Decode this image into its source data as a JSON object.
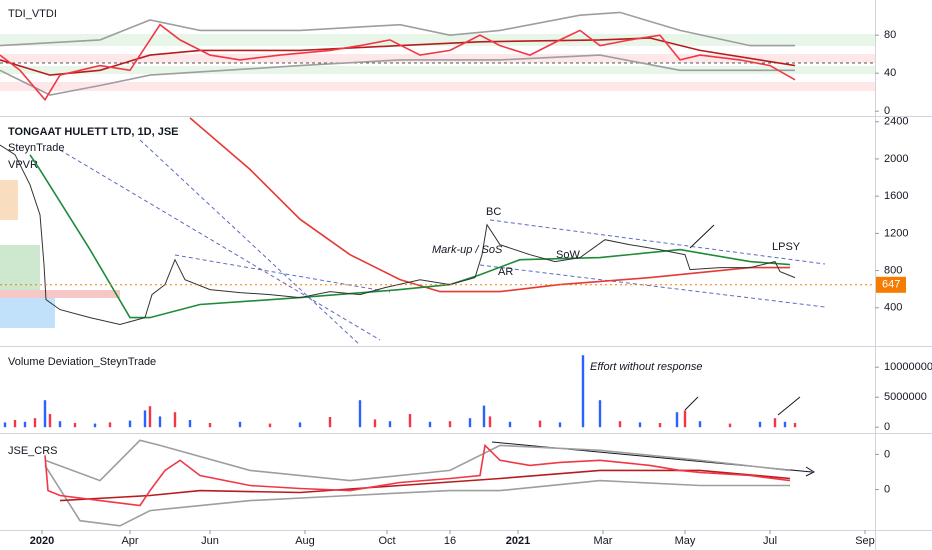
{
  "x_axis": {
    "xlim": [
      0,
      175
    ],
    "xticks": [
      {
        "value": 8.4,
        "label": "2020"
      },
      {
        "value": 26,
        "label": "Apr"
      },
      {
        "value": 42,
        "label": "Jun"
      },
      {
        "value": 61,
        "label": "Aug"
      },
      {
        "value": 77.4,
        "label": "Oct"
      },
      {
        "value": 90,
        "label": "16"
      },
      {
        "value": 103.6,
        "label": "2021"
      },
      {
        "value": 120.6,
        "label": "Mar"
      },
      {
        "value": 137,
        "label": "May"
      },
      {
        "value": 154,
        "label": "Jul"
      },
      {
        "value": 173,
        "label": "Sep"
      }
    ]
  },
  "chart_data": [
    {
      "type": "line",
      "title": "TDI_VTDI",
      "ylim": [
        -4,
        117
      ],
      "yticks": [
        0,
        40,
        80
      ],
      "series": [
        {
          "color": "#9e9e9e",
          "x": [
            0,
            20,
            30,
            40,
            60,
            80,
            90,
            100,
            116,
            124,
            136,
            150,
            159
          ],
          "values": [
            69,
            75,
            96,
            85,
            85,
            91,
            80,
            85,
            101,
            104,
            85,
            69,
            69
          ]
        },
        {
          "color": "#9e9e9e",
          "x": [
            0,
            10,
            20,
            30,
            60,
            80,
            100,
            120,
            136,
            159
          ],
          "values": [
            43,
            17,
            27,
            38,
            48,
            54,
            54,
            59,
            43,
            43
          ]
        },
        {
          "color": "#b71c1c",
          "x": [
            0,
            10,
            20,
            30,
            40,
            60,
            80,
            96,
            120,
            130,
            140,
            159
          ],
          "values": [
            54,
            38,
            43,
            59,
            64,
            64,
            69,
            73,
            75,
            77,
            64,
            48
          ]
        },
        {
          "color": "#f23645",
          "x": [
            0,
            4,
            9,
            12,
            20,
            26,
            30,
            32,
            36,
            42,
            48,
            56,
            66,
            72,
            78,
            84,
            90,
            96,
            100,
            106,
            112,
            116,
            120,
            126,
            132,
            136,
            140,
            148,
            154,
            159
          ],
          "values": [
            59,
            43,
            12,
            38,
            48,
            43,
            75,
            91,
            75,
            59,
            54,
            59,
            64,
            69,
            75,
            59,
            64,
            80,
            69,
            59,
            75,
            85,
            69,
            75,
            80,
            54,
            59,
            54,
            48,
            33
          ]
        }
      ]
    },
    {
      "type": "line",
      "title": "TONGAAT HULETT LTD, 1D, JSE",
      "subtitle": "SteynTrade",
      "indicator": "VPVR",
      "ylim": [
        0,
        2440
      ],
      "yticks": [
        400,
        800,
        1200,
        1600,
        2000,
        2400
      ],
      "last_price": 647,
      "annotations": [
        "BC",
        "Mark-up / SoS",
        "SoW",
        "AR",
        "LPSY"
      ],
      "series": [
        {
          "color": "#e53935",
          "x": [
            38,
            50,
            60,
            70,
            80,
            88,
            100,
            112,
            130,
            150,
            158
          ],
          "values": [
            2441,
            1888,
            1352,
            971,
            703,
            574,
            574,
            649,
            724,
            832,
            832
          ]
        },
        {
          "color": "#1e8b3a",
          "x": [
            6,
            8,
            18,
            26,
            30,
            40,
            60,
            80,
            90,
            96,
            104,
            120,
            136,
            150,
            158
          ],
          "values": [
            2044,
            1883,
            1025,
            295,
            295,
            435,
            510,
            595,
            649,
            756,
            917,
            939,
            1025,
            896,
            864
          ]
        },
        {
          "color": "#333333",
          "x": [
            0,
            3,
            6,
            8,
            8.8,
            9.2,
            12,
            18,
            24,
            29,
            30.4,
            33,
            35,
            37,
            42,
            48,
            54,
            60,
            66,
            72,
            77,
            84,
            90,
            95,
            96.4,
            97.4,
            100,
            106,
            111,
            116,
            121,
            126,
            132,
            137,
            138,
            144,
            150,
            155,
            156,
            159
          ],
          "values": [
            2150,
            2045,
            1722,
            1400,
            864,
            488,
            381,
            295,
            220,
            295,
            542,
            649,
            917,
            702,
            595,
            563,
            542,
            510,
            574,
            542,
            617,
            702,
            649,
            724,
            971,
            1293,
            1078,
            971,
            896,
            939,
            1132,
            1078,
            1024,
            971,
            810,
            832,
            832,
            896,
            789,
            724
          ]
        }
      ]
    },
    {
      "type": "bar",
      "title": "Volume Deviation_SteynTrade",
      "annotation": "Effort without response",
      "ylim": [
        -800000,
        13200000
      ],
      "yticks": [
        0,
        5000000,
        10000000
      ],
      "x": [
        1,
        3,
        5,
        7,
        9,
        10,
        12,
        15,
        19,
        22,
        26,
        29,
        30,
        32,
        35,
        38,
        42,
        48,
        54,
        60,
        66,
        72,
        75,
        78,
        82,
        86,
        90,
        94,
        96.8,
        98,
        102,
        108,
        112,
        116.6,
        120,
        124,
        128,
        132,
        135.4,
        137,
        140,
        146,
        152,
        155,
        157,
        159
      ],
      "values": [
        800000,
        1200000,
        900000,
        1500000,
        4500000,
        2200000,
        1000000,
        700000,
        600000,
        800000,
        1100000,
        2800000,
        3500000,
        1800000,
        2500000,
        1200000,
        700000,
        900000,
        600000,
        800000,
        1700000,
        4500000,
        1300000,
        1000000,
        2200000,
        900000,
        1000000,
        1500000,
        3600000,
        1800000,
        900000,
        1100000,
        800000,
        12000000,
        4500000,
        1000000,
        800000,
        700000,
        2500000,
        2800000,
        1000000,
        600000,
        900000,
        1500000,
        900000,
        700000
      ],
      "colors": [
        "#2962ff",
        "#f23645",
        "#2962ff",
        "#f23645",
        "#2962ff",
        "#f23645",
        "#2962ff",
        "#f23645",
        "#2962ff",
        "#f23645",
        "#2962ff",
        "#2962ff",
        "#f23645",
        "#2962ff",
        "#f23645",
        "#2962ff",
        "#f23645",
        "#2962ff",
        "#f23645",
        "#2962ff",
        "#f23645",
        "#2962ff",
        "#f23645",
        "#2962ff",
        "#f23645",
        "#2962ff",
        "#f23645",
        "#2962ff",
        "#2962ff",
        "#f23645",
        "#2962ff",
        "#f23645",
        "#2962ff",
        "#2962ff",
        "#2962ff",
        "#f23645",
        "#2962ff",
        "#f23645",
        "#2962ff",
        "#f23645",
        "#2962ff",
        "#f23645",
        "#2962ff",
        "#f23645",
        "#2962ff",
        "#f23645"
      ]
    },
    {
      "type": "line",
      "title": "JSE_CRS",
      "ylim": [
        -0.0003,
        0.0051
      ],
      "yticks": [
        {
          "value": 0.004,
          "label": "0"
        },
        {
          "value": 0.002,
          "label": "0"
        }
      ],
      "series": [
        {
          "color": "#9e9e9e",
          "x": [
            9,
            20,
            28,
            32,
            50,
            70,
            90,
            100,
            120,
            140,
            158
          ],
          "values": [
            0.00366,
            0.00251,
            0.0048,
            0.00451,
            0.00309,
            0.00251,
            0.00309,
            0.00451,
            0.00423,
            0.00366,
            0.00309
          ]
        },
        {
          "color": "#9e9e9e",
          "x": [
            9,
            16,
            24,
            30,
            50,
            70,
            90,
            100,
            120,
            140,
            158
          ],
          "values": [
            0.00337,
            0.00023,
            -6e-05,
            0.0008,
            0.00137,
            0.00166,
            0.00194,
            0.00194,
            0.00251,
            0.00223,
            0.00223
          ]
        },
        {
          "color": "#b71c1c",
          "x": [
            12,
            30,
            40,
            60,
            80,
            100,
            120,
            140,
            158
          ],
          "values": [
            0.00137,
            0.00166,
            0.00194,
            0.00183,
            0.00223,
            0.00263,
            0.00309,
            0.00309,
            0.00263
          ]
        },
        {
          "color": "#f23645",
          "x": [
            9,
            9.6,
            12,
            20,
            28,
            30,
            33,
            36,
            40,
            50,
            60,
            70,
            80,
            90,
            96,
            97,
            100,
            106,
            112,
            120,
            130,
            136,
            140,
            150,
            158
          ],
          "values": [
            0.00394,
            0.00194,
            0.00166,
            0.00137,
            0.00109,
            0.00194,
            0.00309,
            0.00366,
            0.0028,
            0.00223,
            0.00206,
            0.00194,
            0.0024,
            0.00263,
            0.0028,
            0.00451,
            0.00366,
            0.00337,
            0.00354,
            0.00366,
            0.00337,
            0.00309,
            0.00297,
            0.0028,
            0.00251
          ]
        }
      ]
    }
  ]
}
